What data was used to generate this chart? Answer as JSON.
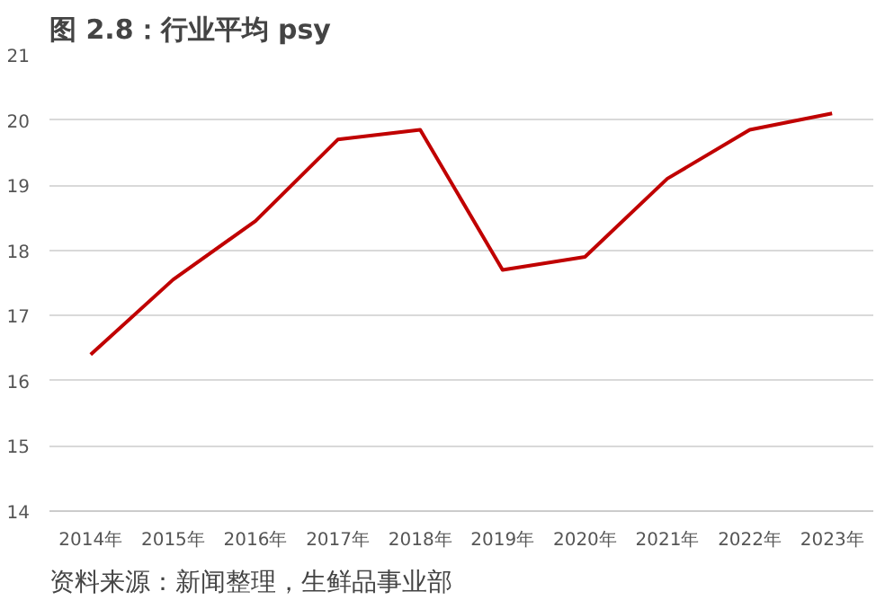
{
  "chart_data": {
    "type": "line",
    "title": "图 2.8：行业平均 psy",
    "categories": [
      "2014年",
      "2015年",
      "2016年",
      "2017年",
      "2018年",
      "2019年",
      "2020年",
      "2021年",
      "2022年",
      "2023年"
    ],
    "series": [
      {
        "color": "#c00000",
        "values": [
          16.4,
          17.55,
          18.45,
          19.7,
          19.85,
          17.7,
          17.9,
          19.1,
          19.85,
          20.1
        ]
      }
    ],
    "ylim": [
      14,
      21
    ],
    "yticks": [
      14,
      15,
      16,
      17,
      18,
      19,
      20,
      21
    ],
    "grid": "y",
    "marker": "none",
    "line_style": "solid",
    "annotations": [
      "资料来源：新闻整理，生鲜品事业部"
    ]
  }
}
